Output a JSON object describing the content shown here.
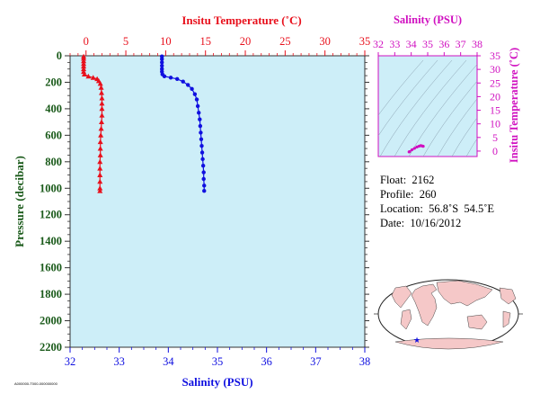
{
  "colors": {
    "temperature": "#e8101c",
    "salinity": "#1010e0",
    "ts_axis": "#d010c0",
    "pressure_axis": "#1a5a1a",
    "plot_bg": "#cdeef8",
    "map_water": "#ffffff",
    "map_land": "#f5c8c8",
    "map_marker": "#1010e0"
  },
  "info": {
    "float_label": "Float:",
    "float_value": "2162",
    "profile_label": "Profile:",
    "profile_value": "260",
    "location_label": "Location:",
    "location_value": "56.8˚S  54.5˚E",
    "date_label": "Date:",
    "date_value": "10/16/2012"
  },
  "footer_code": "A000000-T000-000000000",
  "chart_data": [
    {
      "type": "line",
      "x_top_label": "Insitu Temperature (˚C)",
      "x_top_ticks": [
        "0",
        "5",
        "10",
        "15",
        "20",
        "25",
        "30",
        "35"
      ],
      "x_top_lim": [
        -2,
        35
      ],
      "x_bottom_label": "Salinity (PSU)",
      "x_bottom_ticks": [
        "32",
        "33",
        "34",
        "35",
        "36",
        "37",
        "38"
      ],
      "x_bottom_lim": [
        32,
        38
      ],
      "ylabel": "Pressure (decibar)",
      "y_ticks": [
        "0",
        "200",
        "400",
        "600",
        "800",
        "1000",
        "1200",
        "1400",
        "1600",
        "1800",
        "2000",
        "2200"
      ],
      "ylim": [
        0,
        2200
      ],
      "y_inverted": true,
      "series": [
        {
          "marker": "triangle",
          "axis": "top",
          "points": [
            [
              -0.3,
              5
            ],
            [
              -0.3,
              20
            ],
            [
              -0.3,
              40
            ],
            [
              -0.3,
              60
            ],
            [
              -0.3,
              80
            ],
            [
              -0.3,
              100
            ],
            [
              -0.3,
              120
            ],
            [
              -0.2,
              140
            ],
            [
              0.3,
              155
            ],
            [
              0.9,
              165
            ],
            [
              1.4,
              175
            ],
            [
              1.6,
              190
            ],
            [
              1.8,
              210
            ],
            [
              1.9,
              240
            ],
            [
              1.95,
              280
            ],
            [
              2.0,
              320
            ],
            [
              2.0,
              360
            ],
            [
              2.0,
              400
            ],
            [
              2.0,
              450
            ],
            [
              1.95,
              500
            ],
            [
              1.9,
              550
            ],
            [
              1.85,
              600
            ],
            [
              1.8,
              650
            ],
            [
              1.8,
              700
            ],
            [
              1.8,
              750
            ],
            [
              1.75,
              800
            ],
            [
              1.75,
              850
            ],
            [
              1.75,
              900
            ],
            [
              1.75,
              950
            ],
            [
              1.75,
              1000
            ],
            [
              1.75,
              1020
            ]
          ]
        },
        {
          "marker": "circle",
          "axis": "bottom",
          "points": [
            [
              33.87,
              5
            ],
            [
              33.87,
              25
            ],
            [
              33.87,
              50
            ],
            [
              33.87,
              75
            ],
            [
              33.87,
              100
            ],
            [
              33.87,
              120
            ],
            [
              33.88,
              140
            ],
            [
              33.92,
              155
            ],
            [
              34.05,
              165
            ],
            [
              34.18,
              175
            ],
            [
              34.3,
              195
            ],
            [
              34.4,
              220
            ],
            [
              34.48,
              250
            ],
            [
              34.54,
              290
            ],
            [
              34.58,
              330
            ],
            [
              34.6,
              380
            ],
            [
              34.62,
              430
            ],
            [
              34.64,
              480
            ],
            [
              34.65,
              530
            ],
            [
              34.66,
              580
            ],
            [
              34.67,
              630
            ],
            [
              34.68,
              680
            ],
            [
              34.69,
              730
            ],
            [
              34.7,
              780
            ],
            [
              34.71,
              830
            ],
            [
              34.72,
              880
            ],
            [
              34.72,
              930
            ],
            [
              34.73,
              980
            ],
            [
              34.73,
              1020
            ]
          ]
        }
      ]
    },
    {
      "type": "scatter",
      "title": "Salinity (PSU)",
      "ylabel": "Insitu Temperature (˚C)",
      "x_ticks": [
        "32",
        "33",
        "34",
        "35",
        "36",
        "37",
        "38"
      ],
      "xlim": [
        32,
        38
      ],
      "y_ticks": [
        "0",
        "5",
        "10",
        "15",
        "20",
        "25",
        "30",
        "35"
      ],
      "ylim": [
        -2,
        35
      ],
      "points": [
        [
          33.87,
          -0.3
        ],
        [
          33.9,
          -0.2
        ],
        [
          34.05,
          0.5
        ],
        [
          34.2,
          1.0
        ],
        [
          34.35,
          1.5
        ],
        [
          34.48,
          1.8
        ],
        [
          34.58,
          2.0
        ],
        [
          34.65,
          1.9
        ],
        [
          34.7,
          1.8
        ],
        [
          34.73,
          1.75
        ]
      ]
    }
  ]
}
